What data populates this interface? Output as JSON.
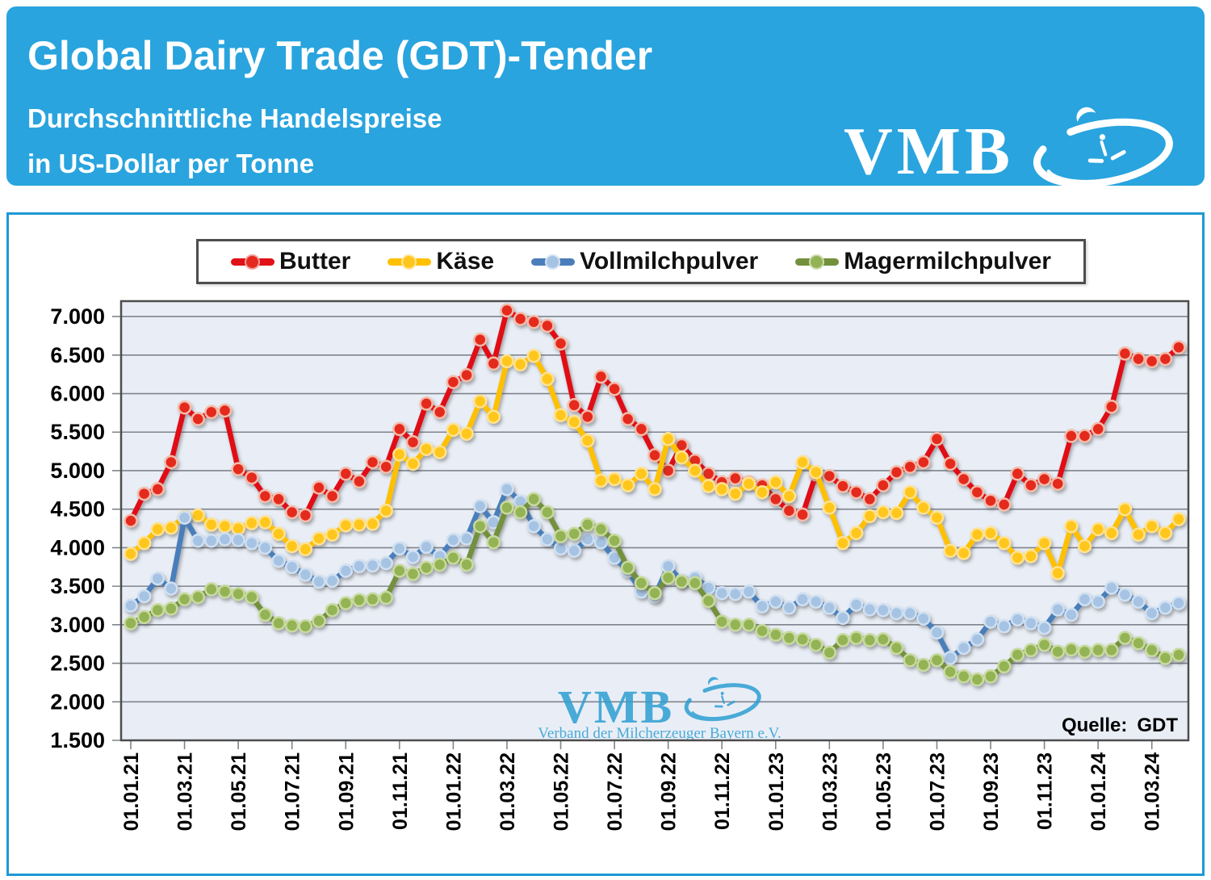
{
  "header": {
    "title": "Global Dairy Trade (GDT)-Tender",
    "subtitle_line1": "Durchschnittliche Handelspreise",
    "subtitle_line2": "in US-Dollar per Tonne",
    "logo_text": "VMB"
  },
  "watermark": {
    "logo_text": "VMB",
    "subtext": "Verband der Milcherzeuger Bayern e.V."
  },
  "source": {
    "label": "Quelle:",
    "value": "GDT"
  },
  "colors": {
    "header_background": "#29A4DE",
    "frame_border": "#1E99D6",
    "plot_background": "#E9EEF6",
    "gridline": "#7F848C",
    "plot_frame": "#4D4D4D",
    "legend_border": "#4D4D4D",
    "watermark_blue": "#2E9FD2",
    "axis_text": "#000000"
  },
  "chart_data": {
    "type": "line",
    "title": "Global Dairy Trade (GDT)-Tender",
    "subtitle": "Durchschnittliche Handelspreise in US-Dollar per Tonne",
    "unit": "US-Dollar per Tonne",
    "grid": true,
    "legend_position": "top",
    "ylim": [
      1500,
      7200
    ],
    "y_ticks": [
      1500,
      2000,
      2500,
      3000,
      3500,
      4000,
      4500,
      5000,
      5500,
      6000,
      6500,
      7000
    ],
    "y_tick_labels": [
      "1.500",
      "2.000",
      "2.500",
      "3.000",
      "3.500",
      "4.000",
      "4.500",
      "5.000",
      "5.500",
      "6.000",
      "6.500",
      "7.000"
    ],
    "x_tick_labels": [
      "01.01.21",
      "01.03.21",
      "01.05.21",
      "01.07.21",
      "01.09.21",
      "01.11.21",
      "01.01.22",
      "01.03.22",
      "01.05.22",
      "01.07.22",
      "01.09.22",
      "01.11.22",
      "01.01.23",
      "01.03.23",
      "01.05.23",
      "01.07.23",
      "01.09.23",
      "01.11.23",
      "01.01.24",
      "01.03.24"
    ],
    "x_tick_every": 4,
    "points_per_series": 79,
    "series": [
      {
        "name": "Butter",
        "color": "#E01117",
        "marker_fill": "#E42A1E",
        "marker_ring": "#F4BCAB",
        "values": [
          4350,
          4700,
          4760,
          5110,
          5820,
          5670,
          5760,
          5780,
          5020,
          4910,
          4670,
          4630,
          4460,
          4420,
          4780,
          4670,
          4960,
          4860,
          5110,
          5050,
          5540,
          5370,
          5870,
          5760,
          6150,
          6240,
          6700,
          6390,
          7080,
          6970,
          6930,
          6880,
          6650,
          5850,
          5700,
          6220,
          6060,
          5670,
          5540,
          5200,
          5000,
          5330,
          5130,
          4960,
          4850,
          4900,
          4850,
          4810,
          4630,
          4480,
          4430,
          4950,
          4930,
          4800,
          4720,
          4630,
          4810,
          4980,
          5050,
          5110,
          5410,
          5090,
          4890,
          4720,
          4610,
          4560,
          4960,
          4810,
          4890,
          4830,
          5450,
          5450,
          5540,
          5830,
          6520,
          6450,
          6420,
          6450,
          6600
        ]
      },
      {
        "name": "Käse",
        "color": "#FFC000",
        "marker_fill": "#FFC61E",
        "marker_ring": "#FFE291",
        "values": [
          3920,
          4060,
          4240,
          4260,
          4400,
          4420,
          4300,
          4280,
          4250,
          4320,
          4330,
          4180,
          4020,
          3980,
          4120,
          4170,
          4290,
          4300,
          4310,
          4480,
          5210,
          5090,
          5280,
          5240,
          5530,
          5480,
          5900,
          5700,
          6420,
          6380,
          6490,
          6190,
          5720,
          5630,
          5390,
          4870,
          4890,
          4810,
          4960,
          4760,
          5410,
          5170,
          5000,
          4800,
          4760,
          4700,
          4830,
          4720,
          4850,
          4670,
          5110,
          4980,
          4520,
          4060,
          4190,
          4410,
          4460,
          4450,
          4720,
          4520,
          4390,
          3960,
          3930,
          4170,
          4190,
          4060,
          3870,
          3890,
          4060,
          3670,
          4280,
          4020,
          4240,
          4190,
          4500,
          4170,
          4280,
          4190,
          4370
        ]
      },
      {
        "name": "Vollmilchpulver",
        "color": "#4A7EBB",
        "marker_fill": "#A6C3E3",
        "marker_ring": "#CFE0F2",
        "values": [
          3250,
          3370,
          3600,
          3470,
          4390,
          4090,
          4090,
          4110,
          4100,
          4060,
          4000,
          3830,
          3750,
          3650,
          3560,
          3570,
          3700,
          3760,
          3770,
          3800,
          3990,
          3880,
          4010,
          3890,
          4100,
          4120,
          4540,
          4330,
          4760,
          4600,
          4280,
          4110,
          3990,
          3960,
          4110,
          4070,
          3870,
          3700,
          3430,
          3370,
          3760,
          3570,
          3610,
          3480,
          3410,
          3400,
          3430,
          3240,
          3300,
          3220,
          3330,
          3300,
          3220,
          3090,
          3260,
          3200,
          3190,
          3150,
          3150,
          3080,
          2900,
          2570,
          2700,
          2810,
          3040,
          2980,
          3070,
          3020,
          2960,
          3200,
          3130,
          3330,
          3300,
          3480,
          3390,
          3300,
          3150,
          3220,
          3280
        ]
      },
      {
        "name": "Magermilchpulver",
        "color": "#73903C",
        "marker_fill": "#93B355",
        "marker_ring": "#C8DA9E",
        "values": [
          3020,
          3100,
          3190,
          3210,
          3330,
          3360,
          3460,
          3430,
          3400,
          3360,
          3130,
          3020,
          2990,
          2980,
          3050,
          3190,
          3280,
          3320,
          3330,
          3350,
          3700,
          3660,
          3740,
          3780,
          3870,
          3780,
          4280,
          4070,
          4520,
          4460,
          4630,
          4460,
          4150,
          4180,
          4300,
          4240,
          4090,
          3740,
          3540,
          3410,
          3610,
          3560,
          3540,
          3310,
          3040,
          3000,
          3000,
          2920,
          2870,
          2830,
          2810,
          2740,
          2640,
          2800,
          2830,
          2800,
          2810,
          2700,
          2540,
          2480,
          2540,
          2390,
          2330,
          2290,
          2330,
          2460,
          2610,
          2670,
          2740,
          2650,
          2680,
          2650,
          2670,
          2670,
          2830,
          2760,
          2670,
          2570,
          2610
        ]
      }
    ]
  }
}
